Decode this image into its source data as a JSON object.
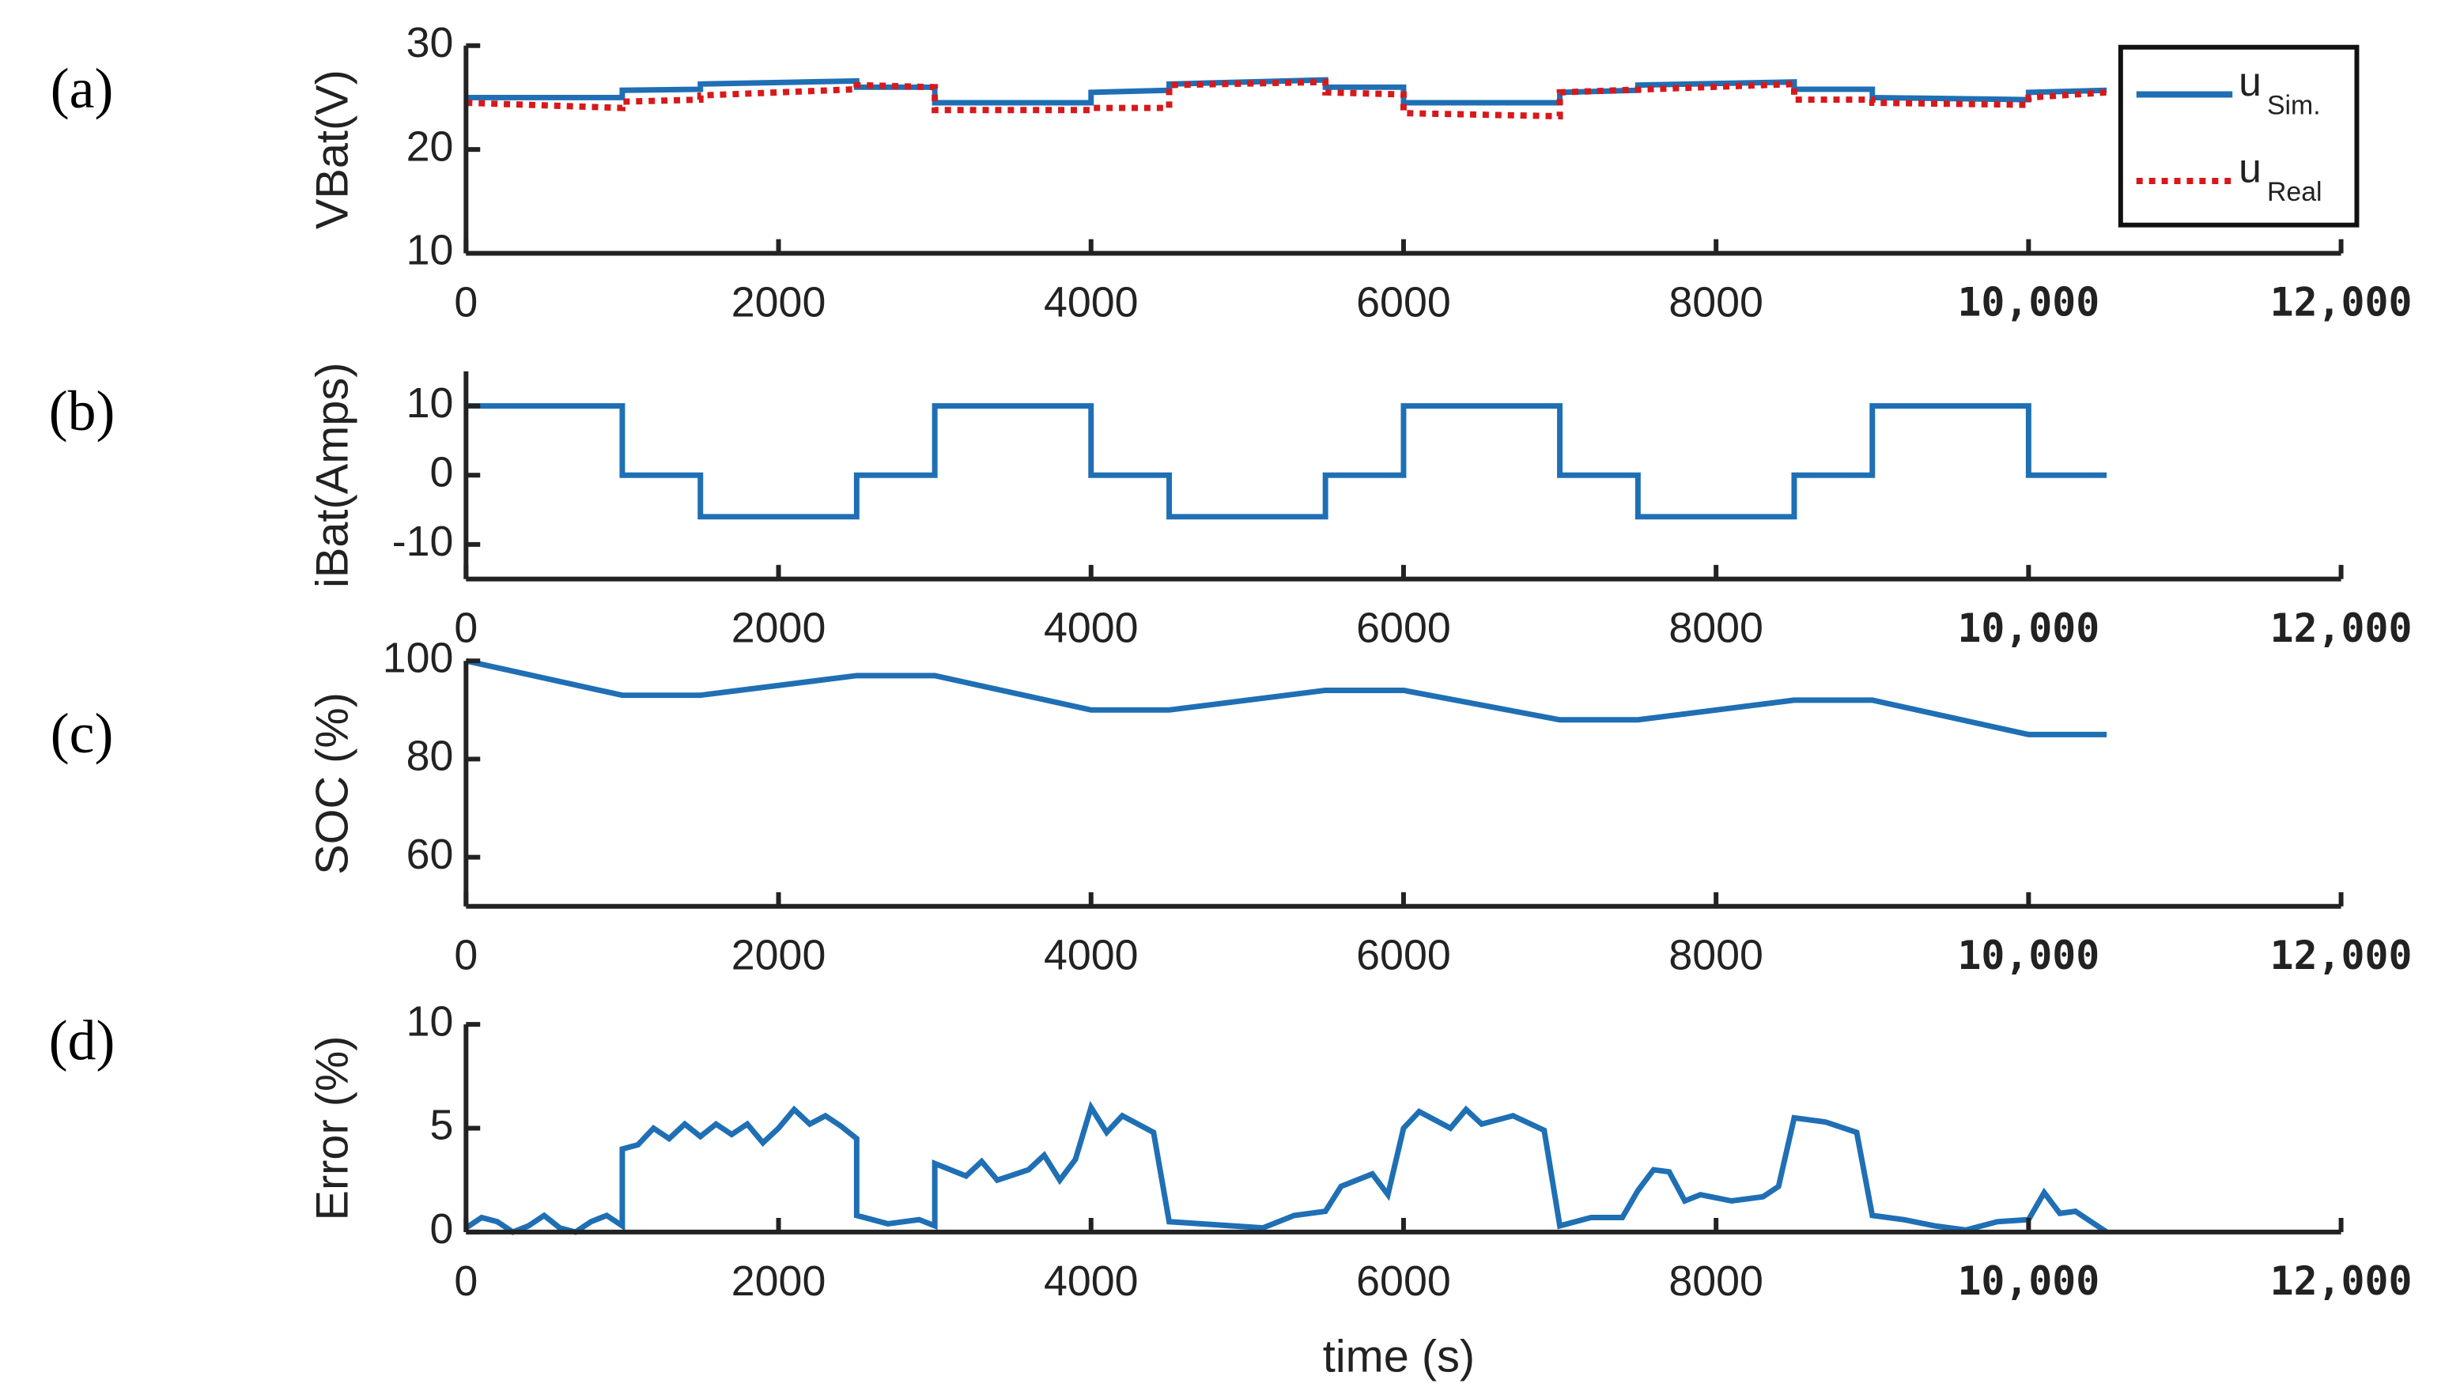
{
  "chart_data": [
    {
      "type": "line",
      "panel_label": "(a)",
      "ylabel": "VBat(V)",
      "xlim": [
        0,
        12000
      ],
      "ylim": [
        10,
        30
      ],
      "yticks": [
        10,
        20,
        30
      ],
      "xticks": [
        0,
        2000,
        4000,
        6000,
        8000,
        {
          "value": 10000,
          "label": "10,000"
        },
        {
          "value": 12000,
          "label": "12,000"
        }
      ],
      "legend": "upper right",
      "series": [
        {
          "name": "u",
          "subscript": "Sim.",
          "color": "#1f6fb4",
          "style": "solid",
          "x": [
            0,
            1000,
            1000,
            1500,
            1500,
            2500,
            2500,
            3000,
            3000,
            4000,
            4000,
            4500,
            4500,
            5500,
            5500,
            6000,
            6000,
            7000,
            7000,
            7500,
            7500,
            8500,
            8500,
            9000,
            9000,
            10000,
            10000,
            10500
          ],
          "values": [
            25,
            25,
            25.7,
            25.8,
            26.3,
            26.6,
            26,
            26,
            24.5,
            24.5,
            25.5,
            25.7,
            26.3,
            26.7,
            26,
            26,
            24.5,
            24.5,
            25.5,
            25.7,
            26.2,
            26.5,
            25.8,
            25.8,
            25,
            24.8,
            25.5,
            25.7
          ]
        },
        {
          "name": "u",
          "subscript": "Real",
          "color": "#d7191c",
          "style": "dotted",
          "x": [
            0,
            1000,
            1000,
            1500,
            1500,
            2500,
            2500,
            3000,
            3000,
            4000,
            4000,
            4500,
            4500,
            5500,
            5500,
            6000,
            6000,
            7000,
            7000,
            8500,
            8500,
            9000,
            9000,
            10000,
            10000,
            10500
          ],
          "values": [
            24.5,
            24,
            24.6,
            24.8,
            25.2,
            25.8,
            26.2,
            26,
            23.8,
            23.8,
            24,
            24,
            26.2,
            26.5,
            25.5,
            25.3,
            23.5,
            23.2,
            25.5,
            26.3,
            24.8,
            24.8,
            24.5,
            24.3,
            25,
            25.5
          ]
        }
      ]
    },
    {
      "type": "line",
      "panel_label": "(b)",
      "ylabel": "iBat(Amps)",
      "xlim": [
        0,
        12000
      ],
      "ylim": [
        -15,
        15
      ],
      "yticks": [
        -10,
        0,
        10
      ],
      "xticks": [
        0,
        2000,
        4000,
        6000,
        8000,
        {
          "value": 10000,
          "label": "10,000"
        },
        {
          "value": 12000,
          "label": "12,000"
        }
      ],
      "series": [
        {
          "color": "#1f6fb4",
          "style": "solid",
          "x": [
            0,
            1000,
            1000,
            1500,
            1500,
            2500,
            2500,
            3000,
            3000,
            4000,
            4000,
            4500,
            4500,
            5500,
            5500,
            6000,
            6000,
            7000,
            7000,
            7500,
            7500,
            8500,
            8500,
            9000,
            9000,
            10000,
            10000,
            10500
          ],
          "values": [
            10,
            10,
            0,
            0,
            -6,
            -6,
            0,
            0,
            10,
            10,
            0,
            0,
            -6,
            -6,
            0,
            0,
            10,
            10,
            0,
            0,
            -6,
            -6,
            0,
            0,
            10,
            10,
            0,
            0
          ]
        }
      ]
    },
    {
      "type": "line",
      "panel_label": "(c)",
      "ylabel": "SOC (%)",
      "xlim": [
        0,
        12000
      ],
      "ylim": [
        50,
        100
      ],
      "yticks": [
        60,
        80,
        100
      ],
      "xticks": [
        0,
        2000,
        4000,
        6000,
        8000,
        {
          "value": 10000,
          "label": "10,000"
        },
        {
          "value": 12000,
          "label": "12,000"
        }
      ],
      "series": [
        {
          "color": "#1f6fb4",
          "style": "solid",
          "x": [
            0,
            1000,
            1500,
            2500,
            3000,
            4000,
            4500,
            5500,
            6000,
            7000,
            7500,
            8500,
            9000,
            10000,
            10500
          ],
          "values": [
            100,
            93,
            93,
            97,
            97,
            90,
            90,
            94,
            94,
            88,
            88,
            92,
            92,
            85,
            85
          ]
        }
      ]
    },
    {
      "type": "line",
      "panel_label": "(d)",
      "ylabel": "Error (%)",
      "xlabel": "time (s)",
      "xlim": [
        0,
        12000
      ],
      "ylim": [
        0,
        10
      ],
      "yticks": [
        0,
        5,
        10
      ],
      "xticks": [
        0,
        2000,
        4000,
        6000,
        8000,
        {
          "value": 10000,
          "label": "10,000"
        },
        {
          "value": 12000,
          "label": "12,000"
        }
      ],
      "series": [
        {
          "color": "#1f6fb4",
          "style": "solid",
          "x": [
            0,
            100,
            200,
            300,
            400,
            500,
            600,
            700,
            800,
            900,
            1000,
            1000,
            1100,
            1200,
            1300,
            1400,
            1500,
            1600,
            1700,
            1800,
            1900,
            2000,
            2100,
            2200,
            2300,
            2400,
            2500,
            2500,
            2700,
            2900,
            3000,
            3000,
            3200,
            3300,
            3400,
            3600,
            3700,
            3800,
            3900,
            4000,
            4100,
            4200,
            4400,
            4500,
            4700,
            4900,
            5100,
            5300,
            5500,
            5600,
            5800,
            5900,
            6000,
            6100,
            6300,
            6400,
            6500,
            6700,
            6900,
            7000,
            7200,
            7400,
            7500,
            7600,
            7700,
            7800,
            7900,
            8100,
            8300,
            8400,
            8500,
            8700,
            8900,
            9000,
            9200,
            9400,
            9600,
            9800,
            10000,
            10100,
            10200,
            10300,
            10500
          ],
          "values": [
            0.2,
            0.7,
            0.5,
            0,
            0.3,
            0.8,
            0.2,
            0,
            0.5,
            0.8,
            0.3,
            4,
            4.2,
            5,
            4.5,
            5.2,
            4.6,
            5.2,
            4.7,
            5.2,
            4.3,
            5,
            5.9,
            5.2,
            5.6,
            5.1,
            4.5,
            0.8,
            0.4,
            0.6,
            0.3,
            3.3,
            2.7,
            3.4,
            2.5,
            3,
            3.7,
            2.5,
            3.5,
            6,
            4.8,
            5.6,
            4.8,
            0.5,
            0.4,
            0.3,
            0.2,
            0.8,
            1,
            2.2,
            2.8,
            1.8,
            5,
            5.8,
            5,
            5.9,
            5.2,
            5.6,
            4.9,
            0.3,
            0.7,
            0.7,
            2,
            3,
            2.9,
            1.5,
            1.8,
            1.5,
            1.7,
            2.2,
            5.5,
            5.3,
            4.8,
            0.8,
            0.6,
            0.3,
            0.1,
            0.5,
            0.6,
            1.9,
            0.9,
            1,
            0
          ]
        }
      ]
    }
  ]
}
